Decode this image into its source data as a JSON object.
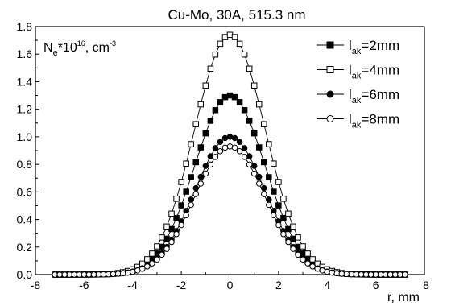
{
  "chart_data": {
    "type": "scatter",
    "title": "Cu-Mo, 30A, 515.3 nm",
    "xlabel": "r, mm",
    "ylabel": {
      "base": "N",
      "sub": "e",
      "mid": "*10",
      "sup1": "16",
      "unit": ", cm",
      "sup2": "-3"
    },
    "xlim": [
      -8,
      8
    ],
    "ylim": [
      0,
      1.8
    ],
    "xticks": [
      -8,
      -6,
      -4,
      -2,
      0,
      2,
      4,
      6,
      8
    ],
    "yticks": [
      0.0,
      0.2,
      0.4,
      0.6,
      0.8,
      1.0,
      1.2,
      1.4,
      1.6,
      1.8
    ],
    "ytick_labels": [
      "0.0",
      "0.2",
      "0.4",
      "0.6",
      "0.8",
      "1.0",
      "1.2",
      "1.4",
      "1.6",
      "1.8"
    ],
    "grid": false,
    "legend_position": "top-right",
    "profile": {
      "x_min": -7.2,
      "x_max": 7.2,
      "step": 0.2,
      "sigma": 1.45
    },
    "series": [
      {
        "label_base": "l",
        "label_sub": "ak",
        "label_rest": "=2mm",
        "marker": "square",
        "filled": true,
        "peak": 1.3
      },
      {
        "label_base": "l",
        "label_sub": "ak",
        "label_rest": "=4mm",
        "marker": "square",
        "filled": false,
        "peak": 1.74
      },
      {
        "label_base": "l",
        "label_sub": "ak",
        "label_rest": "=6mm",
        "marker": "circle",
        "filled": true,
        "peak": 1.0
      },
      {
        "label_base": "l",
        "label_sub": "ak",
        "label_rest": "=8mm",
        "marker": "circle",
        "filled": false,
        "peak": 0.93
      }
    ]
  }
}
